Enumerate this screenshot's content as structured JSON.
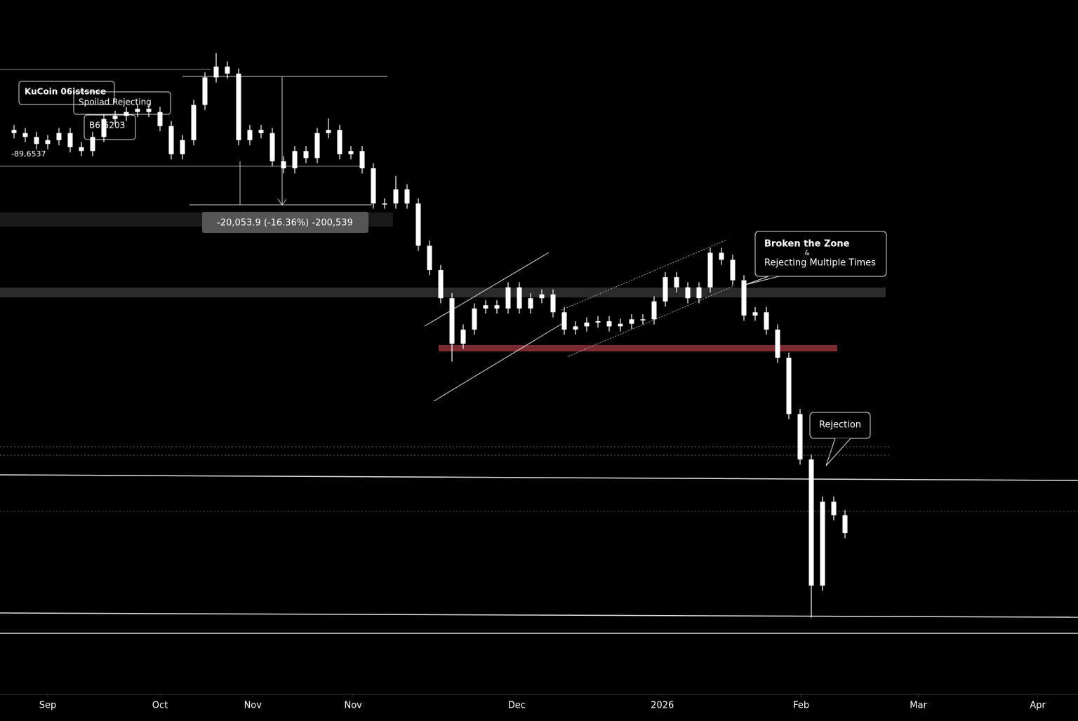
{
  "chart_data": {
    "type": "candlestick",
    "x": [
      -9,
      -6,
      -3,
      0,
      3,
      6,
      9,
      12,
      15,
      18,
      21,
      24,
      27,
      30,
      33,
      36,
      39,
      42,
      45,
      48,
      51,
      54,
      57,
      60,
      63,
      66,
      69,
      72,
      75,
      78,
      81,
      84,
      87,
      90,
      93,
      96,
      99,
      102,
      105,
      108,
      111,
      114,
      117,
      120,
      123,
      126,
      129,
      132,
      135,
      138,
      141,
      144,
      147,
      150,
      153,
      156,
      159,
      162,
      165,
      168,
      171,
      174,
      177,
      180,
      183,
      186,
      189,
      192,
      195,
      198,
      201,
      204,
      207,
      210,
      213
    ],
    "open": [
      114200,
      113700,
      113100,
      112000,
      112600,
      113700,
      111500,
      110900,
      113100,
      115900,
      116400,
      117000,
      117500,
      117000,
      114800,
      110400,
      112600,
      118100,
      122400,
      124100,
      123000,
      112600,
      114200,
      113700,
      109300,
      108200,
      110900,
      109800,
      113700,
      114200,
      110400,
      110900,
      108200,
      102700,
      102700,
      104900,
      102700,
      96100,
      92300,
      87900,
      80800,
      83000,
      86300,
      86800,
      86300,
      89600,
      86300,
      87900,
      88500,
      85700,
      83000,
      83500,
      84100,
      84300,
      83500,
      83900,
      84600,
      84600,
      87400,
      91200,
      89600,
      87900,
      89600,
      95000,
      93900,
      90700,
      85200,
      85700,
      83000,
      78600,
      69800,
      62700,
      43000,
      56100,
      54000
    ],
    "high": [
      115000,
      114500,
      113900,
      113400,
      114500,
      114500,
      112300,
      113900,
      116700,
      117200,
      117800,
      118300,
      118300,
      117800,
      115600,
      113400,
      118900,
      123200,
      126200,
      124900,
      123800,
      115000,
      115000,
      114500,
      110100,
      111700,
      111700,
      114500,
      116000,
      115000,
      111700,
      111700,
      109000,
      103500,
      107000,
      105700,
      103500,
      96900,
      93100,
      88700,
      83800,
      87100,
      87600,
      87600,
      90400,
      90400,
      88700,
      89300,
      89300,
      86500,
      84300,
      84900,
      85100,
      85100,
      84700,
      85400,
      85400,
      88200,
      92000,
      92000,
      90400,
      90400,
      95800,
      95800,
      94700,
      91500,
      86500,
      86500,
      83800,
      79400,
      70600,
      63500,
      56900,
      56900,
      54800
    ],
    "low": [
      112900,
      112300,
      111200,
      111200,
      111800,
      110700,
      110100,
      110100,
      112300,
      115100,
      115600,
      116200,
      116200,
      114000,
      109600,
      109600,
      111800,
      117300,
      121600,
      122200,
      111800,
      111800,
      112900,
      108500,
      107400,
      107400,
      109000,
      109000,
      112900,
      109600,
      109600,
      107400,
      101900,
      101900,
      101900,
      101900,
      95300,
      91500,
      87100,
      78000,
      80000,
      82200,
      85500,
      85500,
      85500,
      85500,
      85500,
      87100,
      84900,
      82200,
      82200,
      82700,
      83300,
      82700,
      82700,
      83100,
      83800,
      83800,
      86600,
      88800,
      87100,
      87100,
      88800,
      93100,
      89900,
      84400,
      84400,
      82200,
      77800,
      69000,
      61900,
      38000,
      42200,
      53200,
      50400
    ],
    "close": [
      113700,
      113100,
      112000,
      112600,
      113700,
      111500,
      110900,
      113100,
      115900,
      116400,
      117000,
      117500,
      117000,
      114800,
      110400,
      112600,
      118100,
      122400,
      124100,
      123000,
      112600,
      114200,
      113700,
      109300,
      108200,
      110900,
      109800,
      113700,
      114200,
      110400,
      110900,
      108200,
      102700,
      102700,
      104900,
      102700,
      96100,
      92300,
      87900,
      80800,
      83000,
      86300,
      86800,
      86300,
      89600,
      86300,
      87900,
      88500,
      85700,
      83000,
      83500,
      84100,
      84300,
      83500,
      83900,
      84600,
      84600,
      87400,
      91200,
      89600,
      87900,
      89600,
      95000,
      93900,
      90700,
      85200,
      85700,
      83000,
      78600,
      69800,
      62700,
      43000,
      56100,
      54000,
      51200
    ],
    "color": "#ffffff",
    "xlim": [
      -12.75,
      275.25
    ],
    "ylim": [
      26000,
      134500
    ],
    "xticks": [
      {
        "value": 0,
        "label": "Sep"
      },
      {
        "value": 30,
        "label": "Oct"
      },
      {
        "value": 54.8,
        "label": "Nov"
      },
      {
        "value": 81.6,
        "label": "Nov"
      },
      {
        "value": 125.3,
        "label": "Dec"
      },
      {
        "value": 164.2,
        "label": "2026"
      },
      {
        "value": 201.3,
        "label": "Feb"
      },
      {
        "value": 232.6,
        "label": "Mar"
      },
      {
        "value": 264.5,
        "label": "Apr"
      }
    ],
    "annotations": {
      "measure": "-20,053.9 (-16.36%) -200,539",
      "zone_title": "Broken the Zone",
      "zone_amp": "&",
      "zone_text": "Rejecting Multiple Times",
      "rejection": "Rejection",
      "top_1": "KuCoin 06istsnce",
      "top_2": "Spoilad Rejecting",
      "top_3": "B6!5203",
      "top_4": "-89,6537"
    }
  }
}
